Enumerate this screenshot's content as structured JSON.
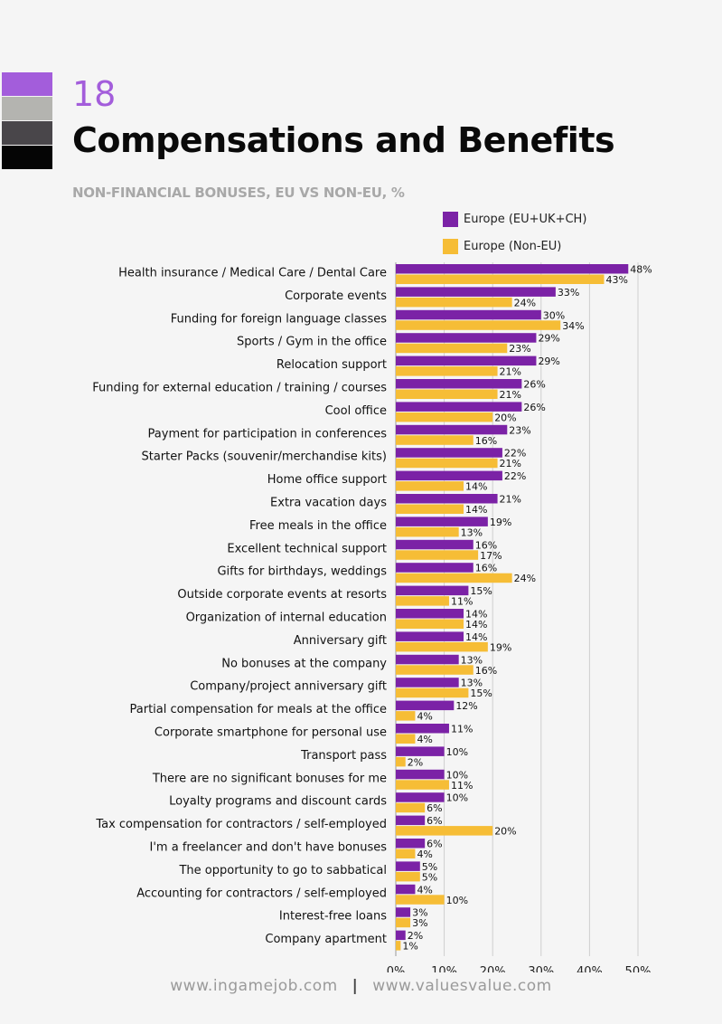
{
  "page": {
    "number": "18",
    "title": "Compensations and Benefits",
    "footer_left": "www.ingamejob.com",
    "footer_separator": "|",
    "footer_right": "www.valuesvalue.com",
    "swatch_colors": [
      "#a35ddb",
      "#b4b4b0",
      "#49464a",
      "#050505"
    ]
  },
  "chart_data": {
    "type": "bar",
    "orientation": "horizontal",
    "subtitle": "NON-FINANCIAL BONUSES, EU VS NON-EU, %",
    "xlim": [
      0,
      50
    ],
    "xticks": [
      "0%",
      "10%",
      "20%",
      "30%",
      "40%",
      "50%"
    ],
    "grid": true,
    "legend_position": "top-right",
    "categories": [
      "Health insurance / Medical Care / Dental Care",
      "Corporate events",
      "Funding for foreign language classes",
      "Sports / Gym in the office",
      "Relocation support",
      "Funding for external education / training / courses",
      "Cool office",
      "Payment for participation in conferences",
      "Starter Packs (souvenir/merchandise kits)",
      "Home office support",
      "Extra vacation days",
      "Free meals in the office",
      "Excellent technical support",
      "Gifts for birthdays, weddings",
      "Outside corporate events at resorts",
      "Organization of internal education",
      "Anniversary gift",
      "No bonuses at the company",
      "Company/project anniversary gift",
      "Partial compensation for meals at the office",
      "Corporate smartphone for personal use",
      "Transport pass",
      "There are no significant bonuses for me",
      "Loyalty programs and discount cards",
      "Tax compensation for contractors / self-employed",
      "I'm a freelancer and don't have bonuses",
      "The opportunity to go to sabbatical",
      "Accounting for contractors / self-employed",
      "Interest-free loans",
      "Company apartment"
    ],
    "series": [
      {
        "name": "Europe (EU+UK+CH)",
        "color": "#7b22a6",
        "values": [
          48,
          33,
          30,
          29,
          29,
          26,
          26,
          23,
          22,
          22,
          21,
          19,
          16,
          16,
          15,
          14,
          14,
          13,
          13,
          12,
          11,
          10,
          10,
          10,
          6,
          6,
          5,
          4,
          3,
          2
        ]
      },
      {
        "name": "Europe (Non-EU)",
        "color": "#f6bd36",
        "values": [
          43,
          24,
          34,
          23,
          21,
          21,
          20,
          16,
          21,
          14,
          14,
          13,
          17,
          24,
          11,
          14,
          19,
          16,
          15,
          4,
          4,
          2,
          11,
          6,
          20,
          4,
          5,
          10,
          3,
          1
        ]
      }
    ]
  }
}
